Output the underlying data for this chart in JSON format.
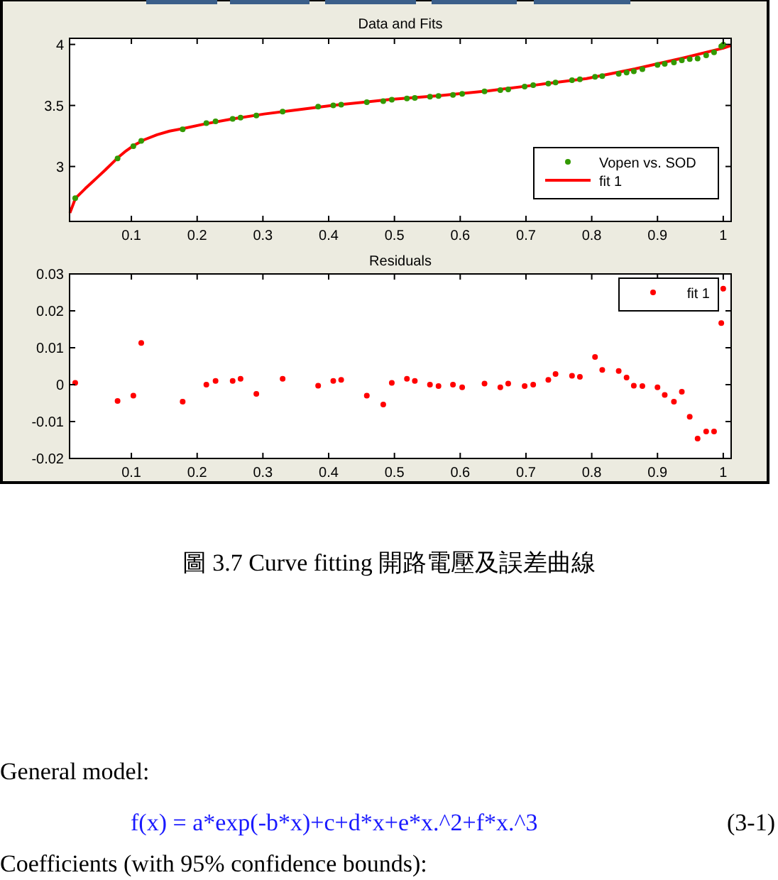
{
  "chart_data": [
    {
      "type": "scatter",
      "title": "Data and Fits",
      "xlim": [
        0.006,
        1.012
      ],
      "xticks": [
        0.1,
        0.2,
        0.3,
        0.4,
        0.5,
        0.6,
        0.7,
        0.8,
        0.9,
        1
      ],
      "ylim": [
        2.55,
        4.05
      ],
      "yticks": [
        3,
        3.5,
        4
      ],
      "grid": false,
      "legend": "bottom right",
      "series": [
        {
          "name": "Vopen vs. SOD",
          "marker": "circle",
          "color": "#339900",
          "x": [
            0.0146,
            0.079,
            0.103,
            0.115,
            0.178,
            0.214,
            0.228,
            0.254,
            0.266,
            0.29,
            0.33,
            0.384,
            0.407,
            0.419,
            0.458,
            0.483,
            0.496,
            0.519,
            0.531,
            0.554,
            0.567,
            0.589,
            0.603,
            0.637,
            0.661,
            0.673,
            0.698,
            0.711,
            0.734,
            0.745,
            0.77,
            0.782,
            0.805,
            0.816,
            0.841,
            0.853,
            0.864,
            0.877,
            0.9,
            0.911,
            0.925,
            0.937,
            0.949,
            0.961,
            0.974,
            0.986,
            0.997,
            1.0
          ],
          "values": [
            2.74,
            3.066,
            3.167,
            3.21,
            3.305,
            3.355,
            3.37,
            3.39,
            3.4,
            3.418,
            3.45,
            3.49,
            3.5,
            3.506,
            3.527,
            3.535,
            3.547,
            3.557,
            3.562,
            3.572,
            3.577,
            3.587,
            3.595,
            3.615,
            3.625,
            3.632,
            3.655,
            3.667,
            3.68,
            3.688,
            3.707,
            3.714,
            3.735,
            3.74,
            3.76,
            3.77,
            3.78,
            3.797,
            3.832,
            3.84,
            3.853,
            3.87,
            3.88,
            3.885,
            3.91,
            3.935,
            3.985,
            3.998
          ]
        },
        {
          "name": "fit 1",
          "type": "line",
          "line_style": "solid",
          "color": "#ff0000",
          "x": [
            0.0065,
            0.015,
            0.03,
            0.04,
            0.05,
            0.06,
            0.079,
            0.09,
            0.103,
            0.12,
            0.139,
            0.158,
            0.178,
            0.213,
            0.254,
            0.302,
            0.346,
            0.406,
            0.495,
            0.569,
            0.643,
            0.718,
            0.792,
            0.866,
            0.94,
            1.0,
            1.011
          ],
          "values": [
            2.62,
            2.74,
            2.82,
            2.87,
            2.92,
            2.97,
            3.07,
            3.12,
            3.17,
            3.22,
            3.26,
            3.29,
            3.31,
            3.35,
            3.39,
            3.43,
            3.46,
            3.5,
            3.55,
            3.58,
            3.62,
            3.67,
            3.72,
            3.8,
            3.89,
            3.97,
            3.99
          ]
        }
      ]
    },
    {
      "type": "scatter",
      "title": "Residuals",
      "xlim": [
        0.006,
        1.012
      ],
      "xticks": [
        0.1,
        0.2,
        0.3,
        0.4,
        0.5,
        0.6,
        0.7,
        0.8,
        0.9,
        1
      ],
      "ylim": [
        -0.02,
        0.03
      ],
      "yticks": [
        -0.02,
        -0.01,
        0,
        0.01,
        0.02,
        0.03
      ],
      "grid": false,
      "legend": "top right",
      "series": [
        {
          "name": "fit 1",
          "marker": "circle",
          "color": "#ff0000",
          "x": [
            0.0146,
            0.079,
            0.103,
            0.115,
            0.178,
            0.214,
            0.228,
            0.254,
            0.266,
            0.29,
            0.33,
            0.384,
            0.407,
            0.419,
            0.458,
            0.483,
            0.496,
            0.519,
            0.531,
            0.554,
            0.567,
            0.589,
            0.603,
            0.637,
            0.661,
            0.673,
            0.698,
            0.711,
            0.734,
            0.745,
            0.77,
            0.782,
            0.805,
            0.816,
            0.841,
            0.853,
            0.864,
            0.877,
            0.9,
            0.911,
            0.925,
            0.937,
            0.949,
            0.961,
            0.974,
            0.986,
            0.997,
            1.0
          ],
          "values": [
            0.0005,
            -0.0044,
            -0.003,
            0.0113,
            -0.0046,
            0,
            0.001,
            0.001,
            0.0016,
            -0.0025,
            0.0016,
            -0.0003,
            0.001,
            0.0013,
            -0.003,
            -0.0054,
            0.0005,
            0.0016,
            0.001,
            0,
            -0.0004,
            0,
            -0.0007,
            0.0003,
            -0.0007,
            0.0003,
            -0.0004,
            0,
            0.0013,
            0.0029,
            0.0024,
            0.0021,
            0.0075,
            0.004,
            0.0037,
            0.0019,
            -0.0003,
            -0.0004,
            -0.0007,
            -0.0028,
            -0.0046,
            -0.0019,
            -0.0087,
            -0.0146,
            -0.0127,
            -0.0127,
            0.0167,
            0.026
          ]
        }
      ],
      "annotations": [
        "圖 3.7 Curve fitting 開路電壓及誤差曲線",
        "General model:",
        "f(x) = a*exp(-b*x)+c+d*x+e*x.^2+f*x.^3",
        "(3-1)",
        "Coefficients (with 95% confidence bounds):"
      ]
    }
  ]
}
